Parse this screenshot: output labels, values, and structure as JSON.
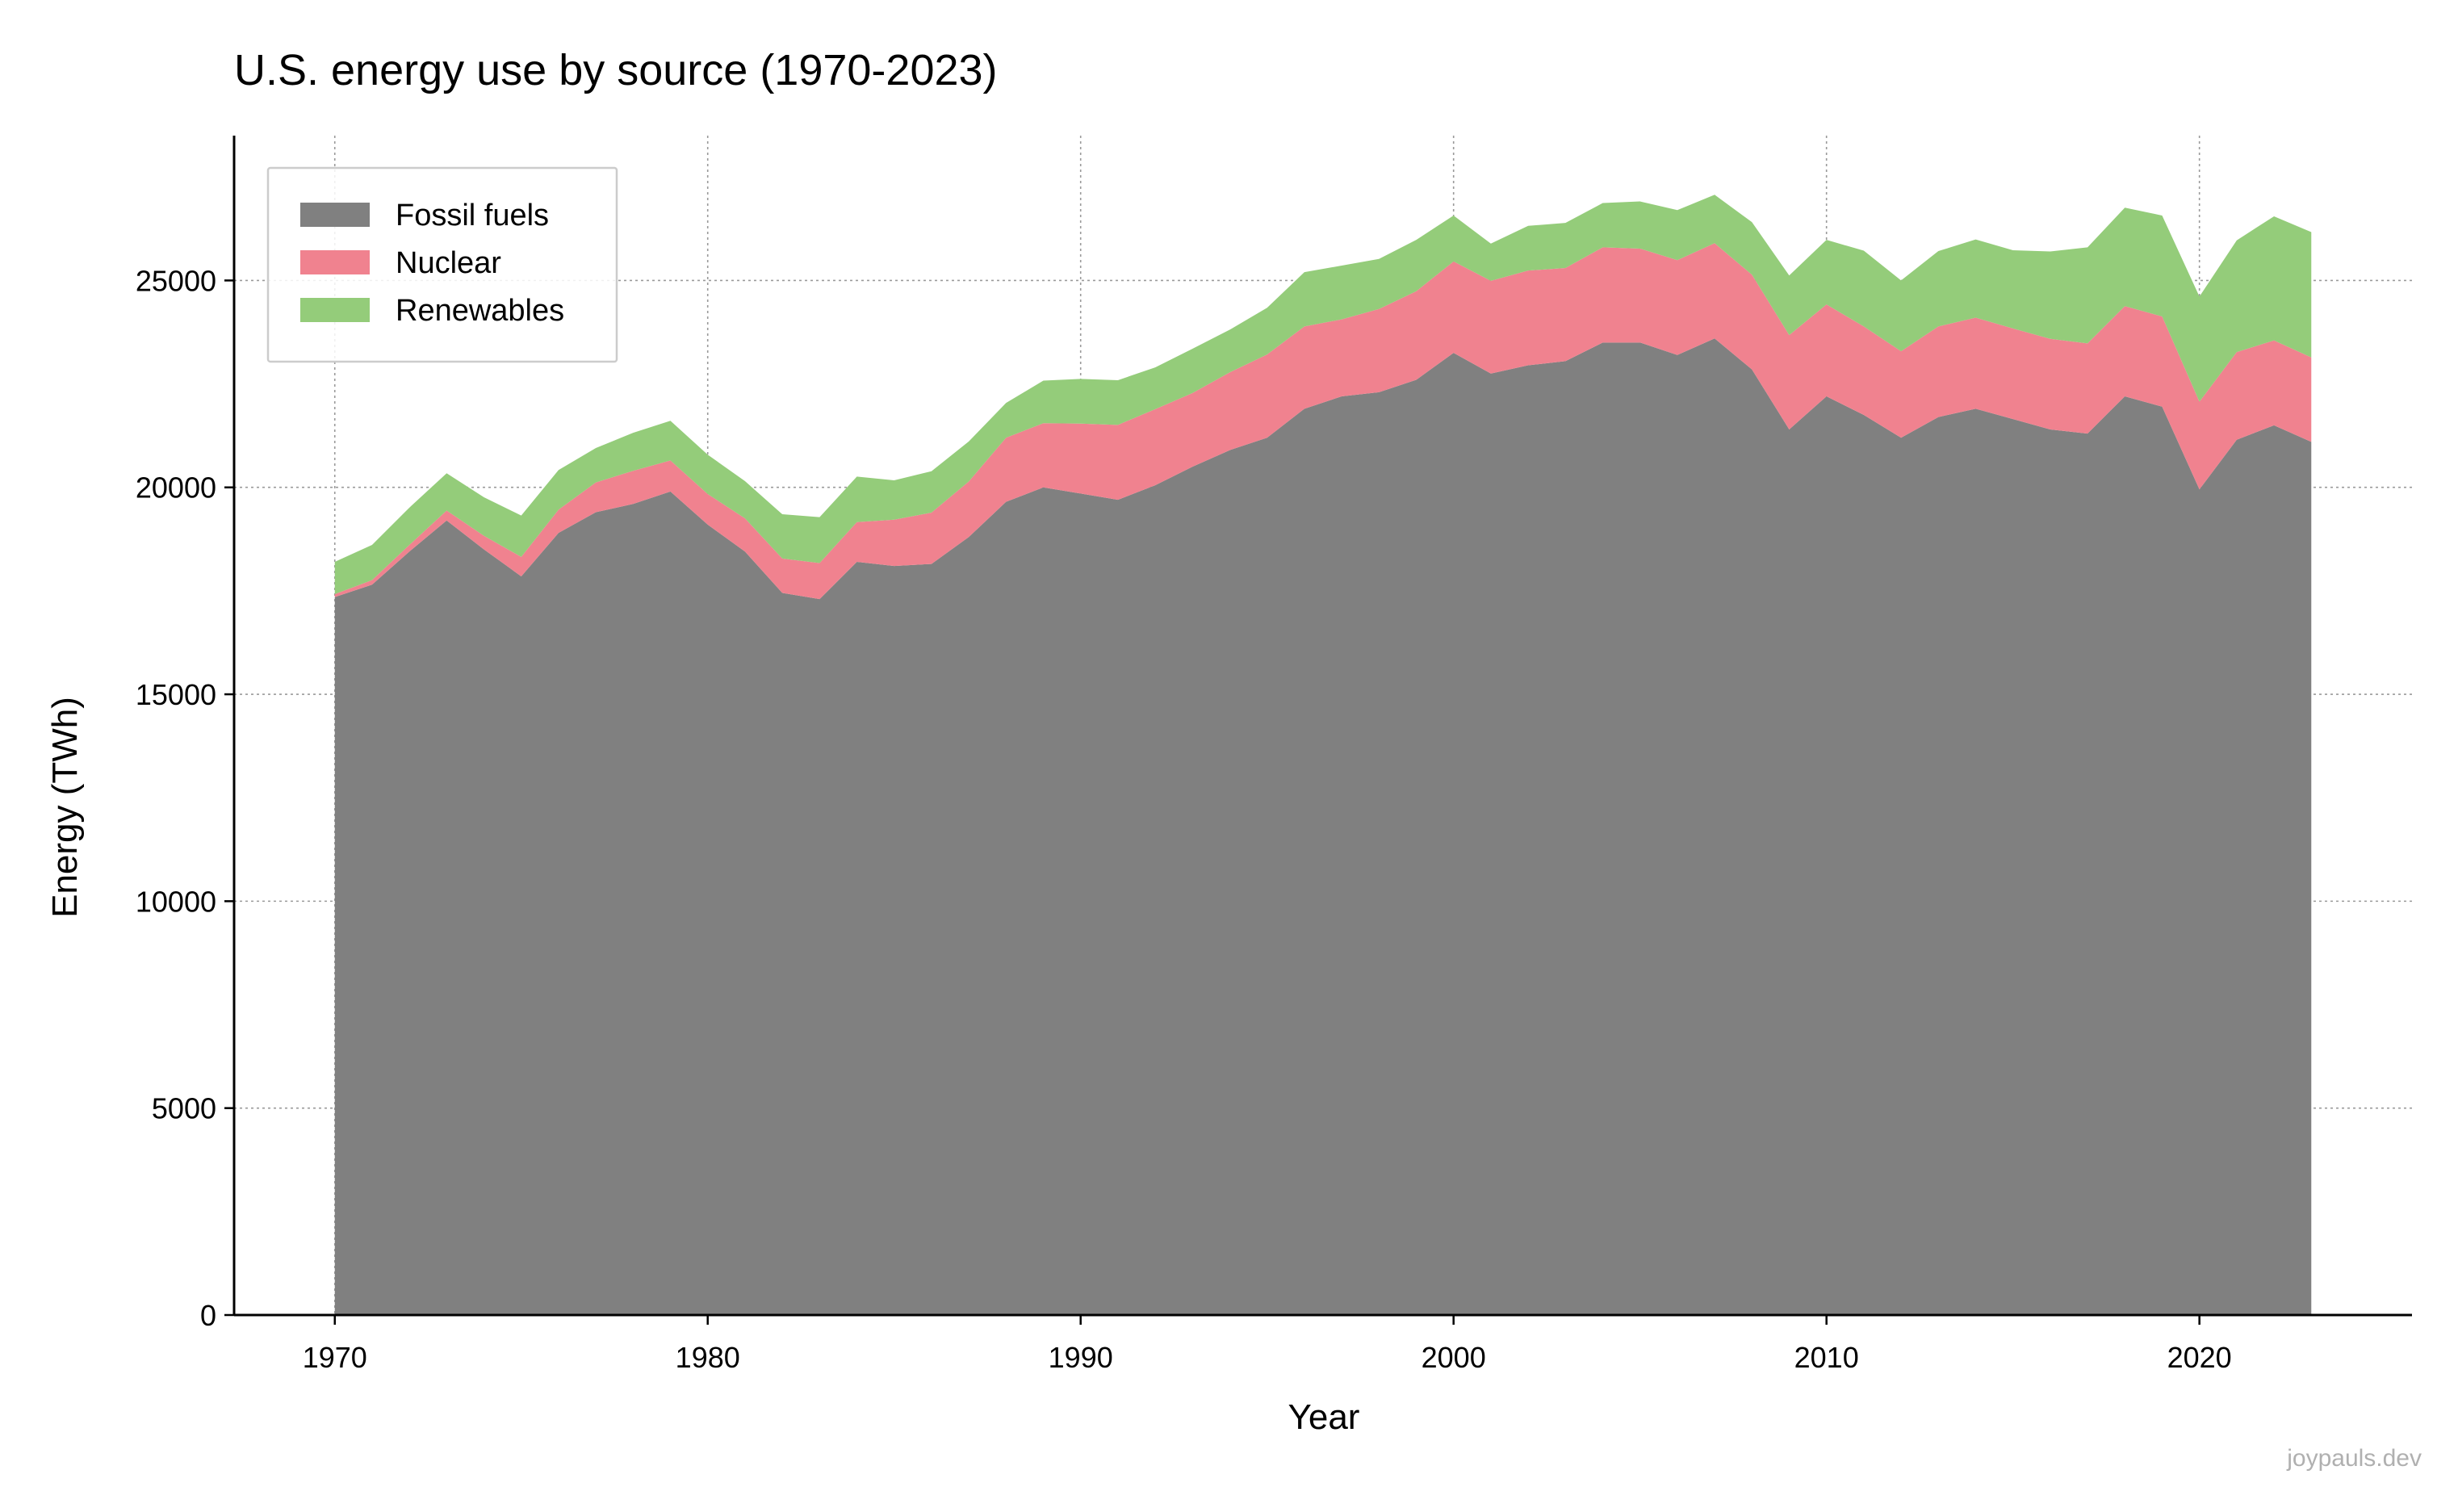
{
  "chart_data": {
    "type": "area",
    "stacked": true,
    "title": "U.S. energy use by source (1970-2023)",
    "xlabel": "Year",
    "ylabel": "Energy (TWh)",
    "xlim": [
      1967.3,
      2025.7
    ],
    "ylim": [
      0,
      28500
    ],
    "x_ticks": [
      1970,
      1980,
      1990,
      2000,
      2010,
      2020
    ],
    "y_ticks": [
      0,
      5000,
      10000,
      15000,
      20000,
      25000
    ],
    "grid": true,
    "legend_position": "top-left",
    "x": [
      1970,
      1971,
      1972,
      1973,
      1974,
      1975,
      1976,
      1977,
      1978,
      1979,
      1980,
      1981,
      1982,
      1983,
      1984,
      1985,
      1986,
      1987,
      1988,
      1989,
      1990,
      1991,
      1992,
      1993,
      1994,
      1995,
      1996,
      1997,
      1998,
      1999,
      2000,
      2001,
      2002,
      2003,
      2004,
      2005,
      2006,
      2007,
      2008,
      2009,
      2010,
      2011,
      2012,
      2013,
      2014,
      2015,
      2016,
      2017,
      2018,
      2019,
      2020,
      2021,
      2022,
      2023
    ],
    "series": [
      {
        "name": "Fossil fuels",
        "color": "#808080",
        "values": [
          17350,
          17650,
          18450,
          19200,
          18500,
          17850,
          18900,
          19400,
          19600,
          19900,
          19100,
          18450,
          17450,
          17300,
          18200,
          18100,
          18150,
          18800,
          19650,
          20000,
          19850,
          19700,
          20050,
          20500,
          20900,
          21200,
          21900,
          22200,
          22300,
          22600,
          23250,
          22750,
          22950,
          23050,
          23500,
          23500,
          23200,
          23600,
          22850,
          21400,
          22200,
          21750,
          21200,
          21700,
          21900,
          21650,
          21400,
          21300,
          22200,
          21950,
          19950,
          21150,
          21500,
          21100
        ]
      },
      {
        "name": "Nuclear",
        "color": "#f0828f",
        "values": [
          70,
          110,
          160,
          240,
          330,
          470,
          560,
          720,
          800,
          750,
          740,
          800,
          830,
          870,
          960,
          1120,
          1240,
          1340,
          1550,
          1550,
          1690,
          1810,
          1840,
          1780,
          1880,
          2010,
          1990,
          1860,
          2010,
          2140,
          2210,
          2240,
          2290,
          2250,
          2300,
          2270,
          2290,
          2300,
          2290,
          2280,
          2220,
          2140,
          2090,
          2190,
          2200,
          2190,
          2190,
          2180,
          2180,
          2180,
          2120,
          2120,
          2050,
          2040
        ]
      },
      {
        "name": "Renewables",
        "color": "#94cc7a",
        "values": [
          780,
          850,
          900,
          900,
          930,
          1000,
          960,
          830,
          920,
          960,
          950,
          900,
          1070,
          1110,
          1100,
          950,
          1000,
          970,
          840,
          1030,
          1080,
          1080,
          1010,
          1070,
          1030,
          1130,
          1310,
          1300,
          1210,
          1240,
          1110,
          900,
          1080,
          1090,
          1070,
          1140,
          1210,
          1170,
          1270,
          1440,
          1560,
          1830,
          1710,
          1820,
          1890,
          1890,
          2110,
          2320,
          2380,
          2440,
          2540,
          2700,
          3000,
          3030
        ]
      }
    ]
  },
  "watermark": "joypauls.dev"
}
